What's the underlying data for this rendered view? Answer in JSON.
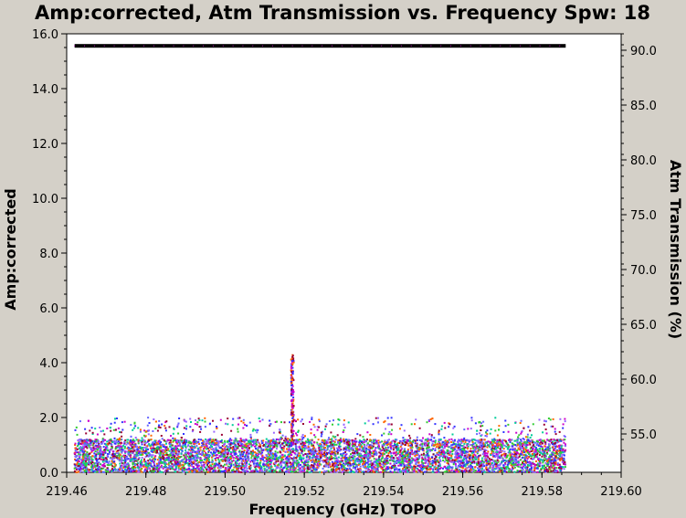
{
  "chart_data": {
    "type": "scatter",
    "title": "Amp:corrected, Atm Transmission vs. Frequency Spw: 18",
    "xlabel": "Frequency (GHz) TOPO",
    "ylabel": "Amp:corrected",
    "y2label": "Atm Transmission (%)",
    "xlim": [
      219.46,
      219.6
    ],
    "ylim": [
      0.0,
      16.0
    ],
    "y2lim": [
      51.5,
      91.5
    ],
    "x_ticks": [
      "219.46",
      "219.48",
      "219.50",
      "219.52",
      "219.54",
      "219.56",
      "219.58",
      "219.60"
    ],
    "y_ticks": [
      "0.0",
      "2.0",
      "4.0",
      "6.0",
      "8.0",
      "10.0",
      "12.0",
      "14.0",
      "16.0"
    ],
    "y2_ticks": [
      "55.0",
      "60.0",
      "65.0",
      "70.0",
      "75.0",
      "80.0",
      "85.0",
      "90.0"
    ],
    "grid": false,
    "series": [
      {
        "axis": "left",
        "kind": "scatter-band",
        "x_range": [
          219.462,
          219.586
        ],
        "amp_typical_range": [
          0.0,
          1.2
        ],
        "amp_max": 2.0,
        "colors": [
          "#9966ff",
          "#3333ff",
          "#00cc99",
          "#33cc33",
          "#cc00cc",
          "#990033",
          "#ff6600",
          "#6666ff"
        ]
      },
      {
        "axis": "left",
        "kind": "spike",
        "x": 219.517,
        "amp_peak": 4.3,
        "colors": [
          "#990033",
          "#cc00cc",
          "#ff6600",
          "#3333ff"
        ]
      },
      {
        "axis": "right",
        "kind": "line",
        "name": "Atm Transmission",
        "x_range": [
          219.462,
          219.586
        ],
        "value": 90.4,
        "color": "#000000",
        "marker_color": "#cc00cc"
      }
    ]
  }
}
